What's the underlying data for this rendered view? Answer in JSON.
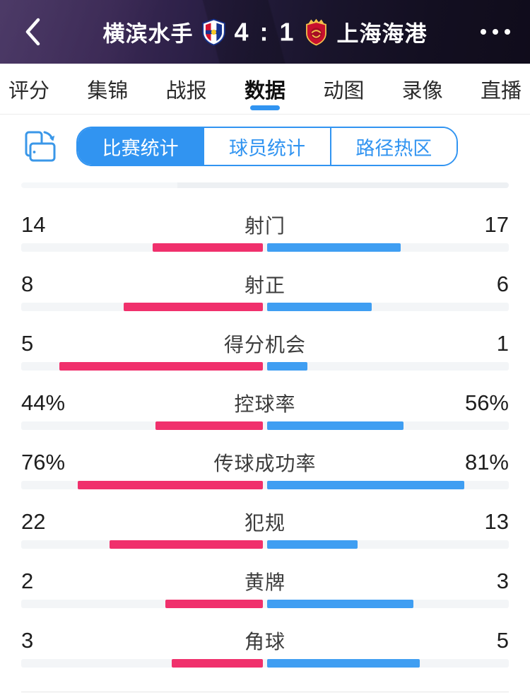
{
  "colors": {
    "home_bar": "#f0306c",
    "away_bar": "#3f9ef2",
    "accent": "#3194f1"
  },
  "header": {
    "home_team": "横滨水手",
    "score": "4 : 1",
    "away_team": "上海海港"
  },
  "tabs": [
    {
      "label": "评分",
      "active": false
    },
    {
      "label": "集锦",
      "active": false
    },
    {
      "label": "战报",
      "active": false
    },
    {
      "label": "数据",
      "active": true
    },
    {
      "label": "动图",
      "active": false
    },
    {
      "label": "录像",
      "active": false
    },
    {
      "label": "直播",
      "active": false
    }
  ],
  "subtabs": [
    {
      "label": "比赛统计",
      "active": true
    },
    {
      "label": "球员统计",
      "active": false
    },
    {
      "label": "路径热区",
      "active": false
    }
  ],
  "stats": {
    "rows": [
      {
        "label": "射门",
        "left": "14",
        "right": "17"
      },
      {
        "label": "射正",
        "left": "8",
        "right": "6"
      },
      {
        "label": "得分机会",
        "left": "5",
        "right": "1"
      },
      {
        "label": "控球率",
        "left": "44%",
        "right": "56%"
      },
      {
        "label": "传球成功率",
        "left": "76%",
        "right": "81%"
      },
      {
        "label": "犯规",
        "left": "22",
        "right": "13"
      },
      {
        "label": "黄牌",
        "left": "2",
        "right": "3"
      },
      {
        "label": "角球",
        "left": "3",
        "right": "5"
      }
    ]
  }
}
